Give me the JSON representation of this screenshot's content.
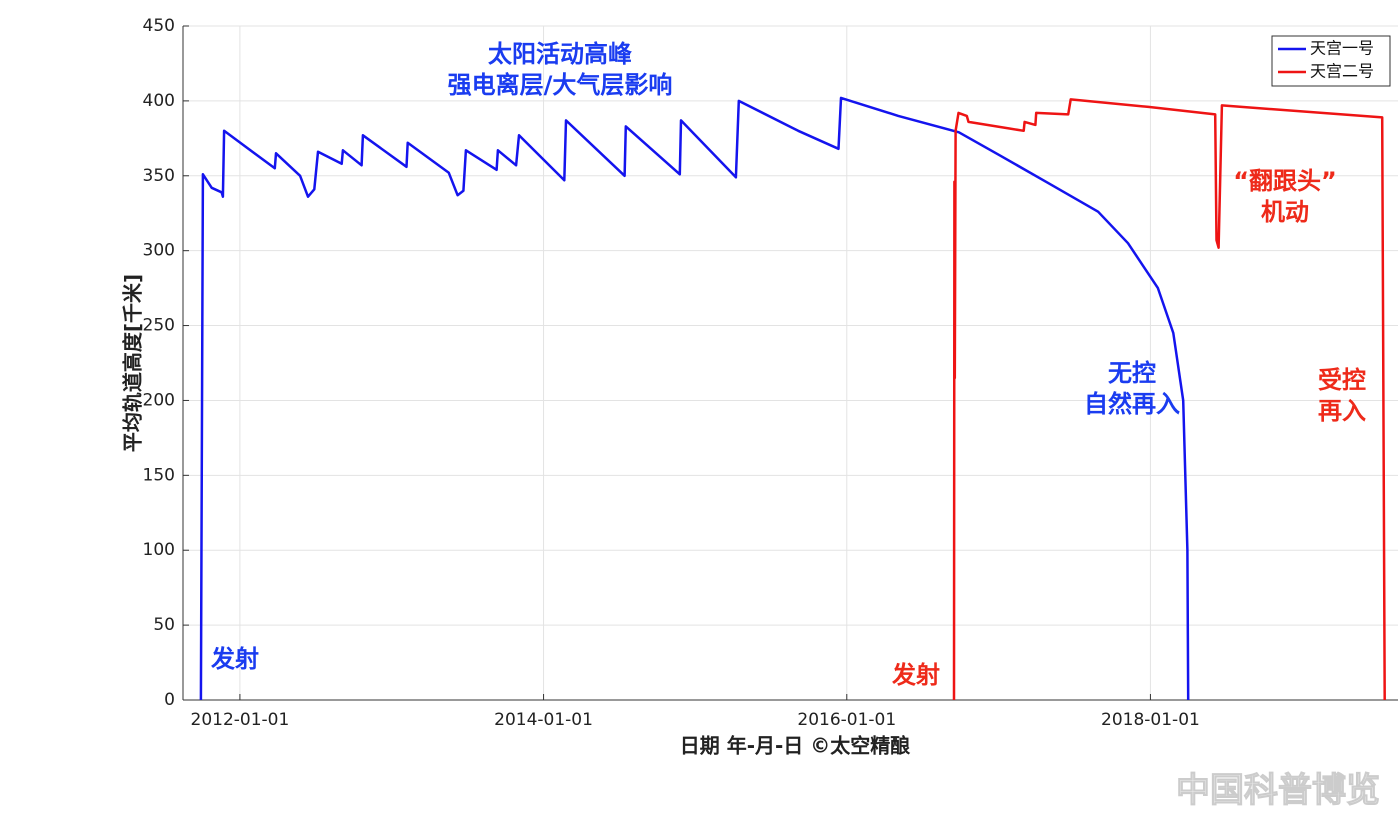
{
  "chart_data": {
    "type": "line",
    "ylabel": "平均轨道高度[千米]",
    "xlabel": "日期 年-月-日  ©太空精酿",
    "xlim": [
      "2011-08-17",
      "2019-08-20"
    ],
    "xticks": [
      "2012-01-01",
      "2014-01-01",
      "2016-01-01",
      "2018-01-01"
    ],
    "ylim": [
      0,
      450
    ],
    "yticks": [
      0,
      50,
      100,
      150,
      200,
      250,
      300,
      350,
      400,
      450
    ],
    "grid": true,
    "legend": "upper right",
    "series": [
      {
        "name": "天宫一号",
        "color": "#1414ee",
        "x": [
          "2011-09-29",
          "2011-10-04",
          "2011-10-25",
          "2011-11-18",
          "2011-11-21",
          "2011-11-24",
          "2012-03-25",
          "2012-03-28",
          "2012-05-25",
          "2012-06-13",
          "2012-06-28",
          "2012-07-07",
          "2012-09-02",
          "2012-09-05",
          "2012-10-20",
          "2012-10-23",
          "2013-02-05",
          "2013-02-08",
          "2013-05-18",
          "2013-06-08",
          "2013-06-22",
          "2013-06-28",
          "2013-09-10",
          "2013-09-13",
          "2013-10-27",
          "2013-11-03",
          "2014-02-20",
          "2014-02-24",
          "2014-07-15",
          "2014-07-18",
          "2014-11-25",
          "2014-11-28",
          "2015-04-09",
          "2015-04-16",
          "2015-09-06",
          "2015-12-12",
          "2015-12-18",
          "2016-05-04",
          "2016-09-27",
          "2017-01-01",
          "2017-05-01",
          "2017-08-28",
          "2017-11-08",
          "2018-01-19",
          "2018-02-25",
          "2018-03-21",
          "2018-03-31",
          "2018-04-02"
        ],
        "values": [
          0,
          351,
          342,
          339,
          336,
          380,
          355,
          365,
          350,
          336,
          341,
          366,
          358,
          367,
          357,
          377,
          356,
          372,
          352,
          337,
          340,
          367,
          354,
          367,
          357,
          377,
          347,
          387,
          350,
          383,
          351,
          387,
          349,
          400,
          380,
          368,
          402,
          390,
          379,
          364,
          345,
          326,
          305,
          275,
          245,
          200,
          100,
          0
        ]
      },
      {
        "name": "天宫二号",
        "color": "#ee1414",
        "x": [
          "2016-09-15",
          "2016-09-16",
          "2016-09-17",
          "2016-09-19",
          "2016-09-26",
          "2016-10-16",
          "2016-10-20",
          "2017-03-02",
          "2017-03-04",
          "2017-03-30",
          "2017-04-01",
          "2017-06-17",
          "2017-06-23",
          "2017-12-27",
          "2018-06-06",
          "2018-06-09",
          "2018-06-14",
          "2018-06-22",
          "2019-07-13",
          "2019-07-19"
        ],
        "values": [
          0,
          346,
          215,
          380,
          392,
          390,
          386,
          380,
          386,
          384,
          392,
          391,
          401,
          396,
          391,
          307,
          302,
          397,
          389,
          0
        ]
      }
    ],
    "annotations": [
      {
        "lines": [
          "太阳活动高峰",
          "强电离层/大气层影响"
        ],
        "color": "#1a3cf0"
      },
      {
        "lines": [
          "发射"
        ],
        "color": "#1a3cf0"
      },
      {
        "lines": [
          "无控",
          "自然再入"
        ],
        "color": "#1a3cf0"
      },
      {
        "lines": [
          "发射"
        ],
        "color": "#ee2a1a"
      },
      {
        "lines": [
          "“翻跟头”",
          "机动"
        ],
        "color": "#ee2a1a"
      },
      {
        "lines": [
          "受控",
          "再入"
        ],
        "color": "#ee2a1a"
      }
    ],
    "watermark": "中国科普博览"
  }
}
